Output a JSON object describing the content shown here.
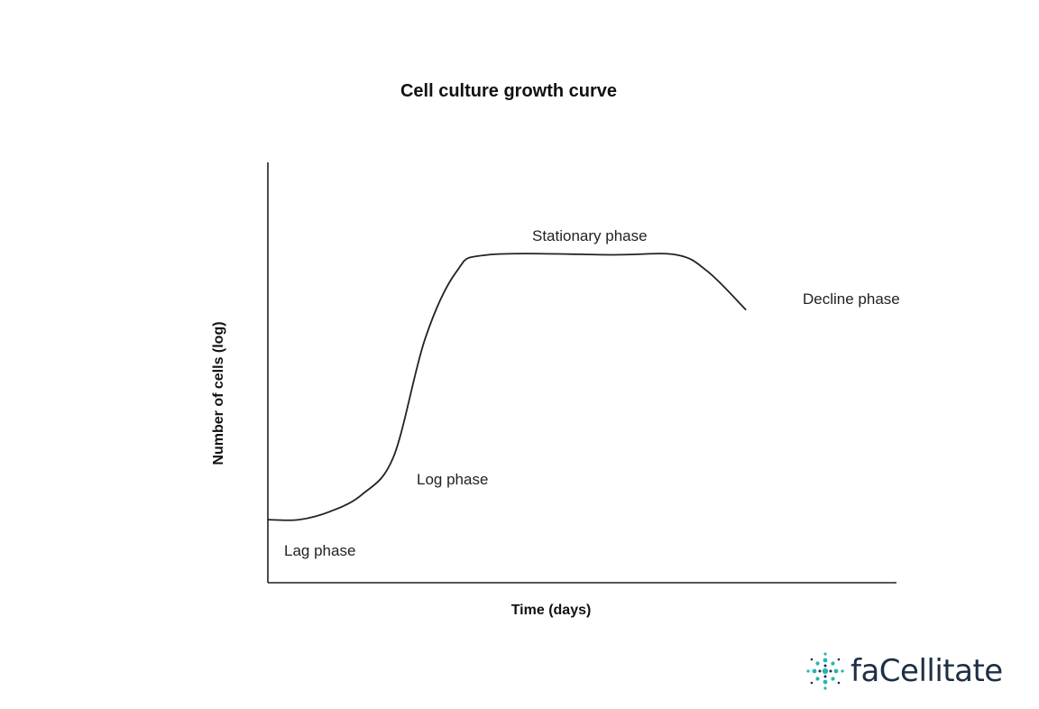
{
  "chart_data": {
    "type": "line",
    "title": "Cell culture growth curve",
    "xlabel": "Time (days)",
    "ylabel": "Number of cells (log)",
    "xticks": false,
    "yticks": false,
    "grid": false,
    "series": [
      {
        "points": [
          {
            "x": 0.0,
            "y": 0.15
          },
          {
            "x": 0.05,
            "y": 0.15
          },
          {
            "x": 0.1,
            "y": 0.17
          },
          {
            "x": 0.15,
            "y": 0.21
          },
          {
            "x": 0.2,
            "y": 0.3
          },
          {
            "x": 0.25,
            "y": 0.58
          },
          {
            "x": 0.3,
            "y": 0.74
          },
          {
            "x": 0.35,
            "y": 0.78
          },
          {
            "x": 0.55,
            "y": 0.78
          },
          {
            "x": 0.65,
            "y": 0.78
          },
          {
            "x": 0.7,
            "y": 0.74
          },
          {
            "x": 0.76,
            "y": 0.65
          }
        ]
      }
    ],
    "annotations": [
      {
        "text": "Lag phase"
      },
      {
        "text": "Log phase"
      },
      {
        "text": "Stationary phase"
      },
      {
        "text": "Decline phase"
      }
    ]
  },
  "branding": {
    "logo_text": "faCellitate",
    "logo_icon": "cell-cluster-icon",
    "logo_color": "#1e2e44",
    "logo_accent": "#2ab3b1"
  }
}
